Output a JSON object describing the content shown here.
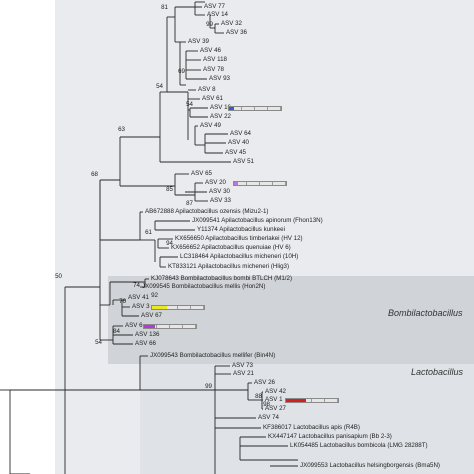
{
  "colors": {
    "band_light": "#e9ebee",
    "band_mid": "#dfe2e6",
    "band_dark": "#d0d3d7",
    "line": "#2a2a2a",
    "fill_blue": "#2f5fd0",
    "fill_purple": "#b87ad8",
    "fill_yellow": "#e8e82a",
    "fill_magenta": "#b33ad8",
    "fill_red": "#d81e1e"
  },
  "clades": {
    "bombilactobacillus": "Bombilactobacillus",
    "lactobacillus": "Lactobacillus"
  },
  "tips": {
    "asv77": "ASV 77",
    "asv14": "ASV 14",
    "asv32": "ASV 32",
    "asv36": "ASV 36",
    "asv39": "ASV 39",
    "asv46": "ASV 46",
    "asv118": "ASV 118",
    "asv78": "ASV 78",
    "asv93": "ASV 93",
    "asv8": "ASV 8",
    "asv61": "ASV 61",
    "asv16": "ASV 16",
    "asv22": "ASV 22",
    "asv49": "ASV 49",
    "asv64": "ASV 64",
    "asv40": "ASV 40",
    "asv45": "ASV 45",
    "asv51": "ASV 51",
    "asv65": "ASV 65",
    "asv20": "ASV 20",
    "asv30": "ASV 30",
    "asv33": "ASV 33",
    "ab672888": "AB672888 Apilactobacillus ozensis (Mizu2-1)",
    "jx099541": "JX099541 Apilactobacillus apinorum (Fhon13N)",
    "y11374": "Y11374 Apilactobacillus kunkeei",
    "kx656650": "KX656650 Apilactobacillus timberlakei (HV 12)",
    "kx656652": "KX656652 Apilactobacillus quenuiae (HV 6)",
    "lc318464": "LC318464 Apilactobacillus micheneri (10H)",
    "kt833121": "KT833121 Apilactobacillus micheneri (Hlig3)",
    "kj078643": "KJ078643 Bombilactobacillus bombi BTLCH (M1/2)",
    "jx099545": "JX099545 Bombilactobacillus mellis (Hon2N)",
    "asv41": "ASV 41",
    "asv3": "ASV 3",
    "asv67": "ASV 67",
    "asv6": "ASV 6",
    "asv136": "ASV 136",
    "asv66": "ASV 66",
    "jx099543": "JX099543 Bombilactobacillus mellifer (Bin4N)",
    "asv73": "ASV 73",
    "asv21": "ASV 21",
    "asv26": "ASV 26",
    "asv42": "ASV 42",
    "asv1": "ASV 1",
    "asv27": "ASV 27",
    "asv74": "ASV 74",
    "kf386017": "KF386017 Lactobacillus apis (R4B)",
    "kx447147": "KX447147 Lactobacillus panisapium (Bb 2-3)",
    "lk054485": "LK054485 Lactobacillus bombicola (LMG 28288T)",
    "jx099553": "JX099553 Lactobacillus helsingborgensis (Bma5N)"
  },
  "bootstrap": {
    "n81": "81",
    "n99a": "99",
    "n69": "69",
    "n54a": "54",
    "n54b": "54",
    "n63": "63",
    "n68": "68",
    "n85": "85",
    "n87": "87",
    "n61": "61",
    "n94": "94",
    "n50": "50",
    "n74": "74",
    "n92": "92",
    "n76": "76",
    "n84": "84",
    "n54c": "54",
    "n99b": "99",
    "n88": "88",
    "n98": "98"
  },
  "profiles": {
    "asv16": 0.1,
    "asv20": 0.08,
    "asv3": 0.28,
    "asv6": 0.22,
    "asv1": 0.38
  }
}
